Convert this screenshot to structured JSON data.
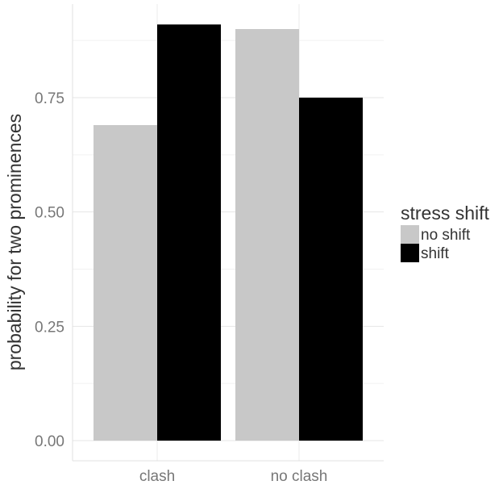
{
  "chart_data": {
    "type": "bar",
    "title": "",
    "xlabel": "",
    "ylabel": "probability for two prominences",
    "categories": [
      "clash",
      "no clash"
    ],
    "yticks": [
      "0.00",
      "0.25",
      "0.50",
      "0.75"
    ],
    "ylim": [
      0,
      0.93
    ],
    "grid": true,
    "legend": {
      "title": "stress shift",
      "position": "right"
    },
    "series": [
      {
        "name": "no shift",
        "color": "#c8c8c8",
        "values": [
          0.69,
          0.9
        ]
      },
      {
        "name": "shift",
        "color": "#000000",
        "values": [
          0.91,
          0.75
        ]
      }
    ]
  }
}
